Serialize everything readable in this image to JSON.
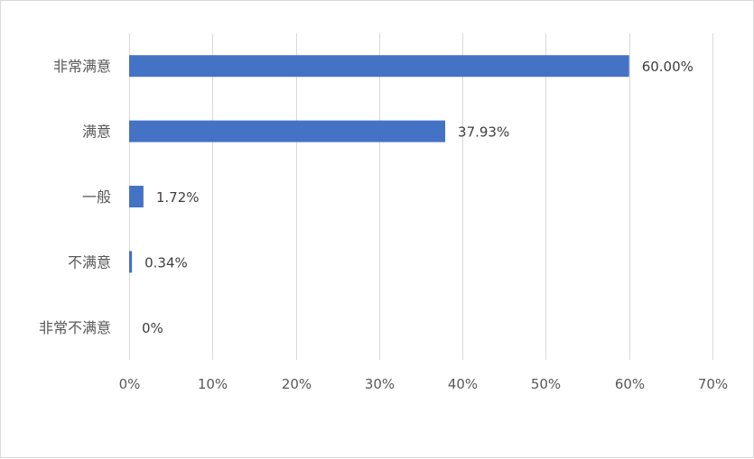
{
  "chart_data": {
    "type": "bar",
    "orientation": "horizontal",
    "categories": [
      "非常满意",
      "满意",
      "一般",
      "不满意",
      "非常不满意"
    ],
    "values": [
      60.0,
      37.93,
      1.72,
      0.34,
      0
    ],
    "data_labels": [
      "60.00%",
      "37.93%",
      "1.72%",
      "0.34%",
      "0%"
    ],
    "x_ticks": [
      "0%",
      "10%",
      "20%",
      "30%",
      "40%",
      "50%",
      "60%",
      "70%"
    ],
    "xlim": [
      0,
      70
    ],
    "grid": "vertical",
    "legend": "none",
    "bar_color": "#4472c4",
    "grid_color": "#d9d9d9"
  }
}
